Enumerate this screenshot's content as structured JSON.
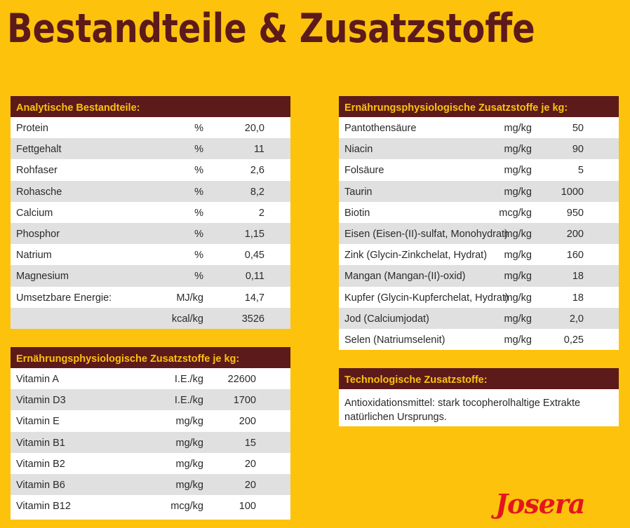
{
  "title": "Bestandteile & Zusatzstoffe",
  "analytical": {
    "header": "Analytische Bestandteile:",
    "rows": [
      {
        "name": "Protein",
        "unit": "%",
        "value": "20,0"
      },
      {
        "name": "Fettgehalt",
        "unit": "%",
        "value": "11"
      },
      {
        "name": "Rohfaser",
        "unit": "%",
        "value": "2,6"
      },
      {
        "name": "Rohasche",
        "unit": "%",
        "value": "8,2"
      },
      {
        "name": "Calcium",
        "unit": "%",
        "value": "2"
      },
      {
        "name": "Phosphor",
        "unit": "%",
        "value": "1,15"
      },
      {
        "name": "Natrium",
        "unit": "%",
        "value": "0,45"
      },
      {
        "name": "Magnesium",
        "unit": "%",
        "value": "0,11"
      },
      {
        "name": "Umsetzbare Energie:",
        "unit": "MJ/kg",
        "value": "14,7"
      },
      {
        "name": "",
        "unit": "kcal/kg",
        "value": "3526"
      }
    ]
  },
  "vitamins": {
    "header": "Ernährungsphysiologische Zusatzstoffe je kg:",
    "rows": [
      {
        "name": "Vitamin A",
        "unit": "I.E./kg",
        "value": "22600"
      },
      {
        "name": "Vitamin D3",
        "unit": "I.E./kg",
        "value": "1700"
      },
      {
        "name": "Vitamin E",
        "unit": "mg/kg",
        "value": "200"
      },
      {
        "name": "Vitamin B1",
        "unit": "mg/kg",
        "value": "15"
      },
      {
        "name": "Vitamin B2",
        "unit": "mg/kg",
        "value": "20"
      },
      {
        "name": "Vitamin B6",
        "unit": "mg/kg",
        "value": "20"
      },
      {
        "name": "Vitamin B12",
        "unit": "mcg/kg",
        "value": "100"
      }
    ]
  },
  "minerals": {
    "header": "Ernährungsphysiologische Zusatzstoffe je kg:",
    "rows": [
      {
        "name": "Pantothensäure",
        "unit": "mg/kg",
        "value": "50"
      },
      {
        "name": "Niacin",
        "unit": "mg/kg",
        "value": "90"
      },
      {
        "name": "Folsäure",
        "unit": "mg/kg",
        "value": "5"
      },
      {
        "name": "Taurin",
        "unit": "mg/kg",
        "value": "1000"
      },
      {
        "name": "Biotin",
        "unit": "mcg/kg",
        "value": "950"
      },
      {
        "name": "Eisen (Eisen-(II)-sulfat, Monohydrat)",
        "unit": "mg/kg",
        "value": "200"
      },
      {
        "name": "Zink (Glycin-Zinkchelat, Hydrat)",
        "unit": "mg/kg",
        "value": "160"
      },
      {
        "name": "Mangan (Mangan-(II)-oxid)",
        "unit": "mg/kg",
        "value": "18"
      },
      {
        "name": "Kupfer (Glycin-Kupferchelat, Hydrat)",
        "unit": "mg/kg",
        "value": "18"
      },
      {
        "name": "Jod (Calciumjodat)",
        "unit": "mg/kg",
        "value": "2,0"
      },
      {
        "name": "Selen (Natriumselenit)",
        "unit": "mg/kg",
        "value": "0,25"
      }
    ]
  },
  "technological": {
    "header": "Technologische Zusatzstoffe:",
    "text_line1": "Antioxidationsmittel: stark tocopherolhaltige Extrakte",
    "text_line2": "natürlichen Ursprungs."
  },
  "brand": {
    "logo_text": "Josera",
    "logo_color": "#e3161d"
  },
  "colors": {
    "background": "#fdc20c",
    "header_bg": "#5c1a1b",
    "header_text": "#fdc20c",
    "row_alt": "#e0e0e0"
  }
}
